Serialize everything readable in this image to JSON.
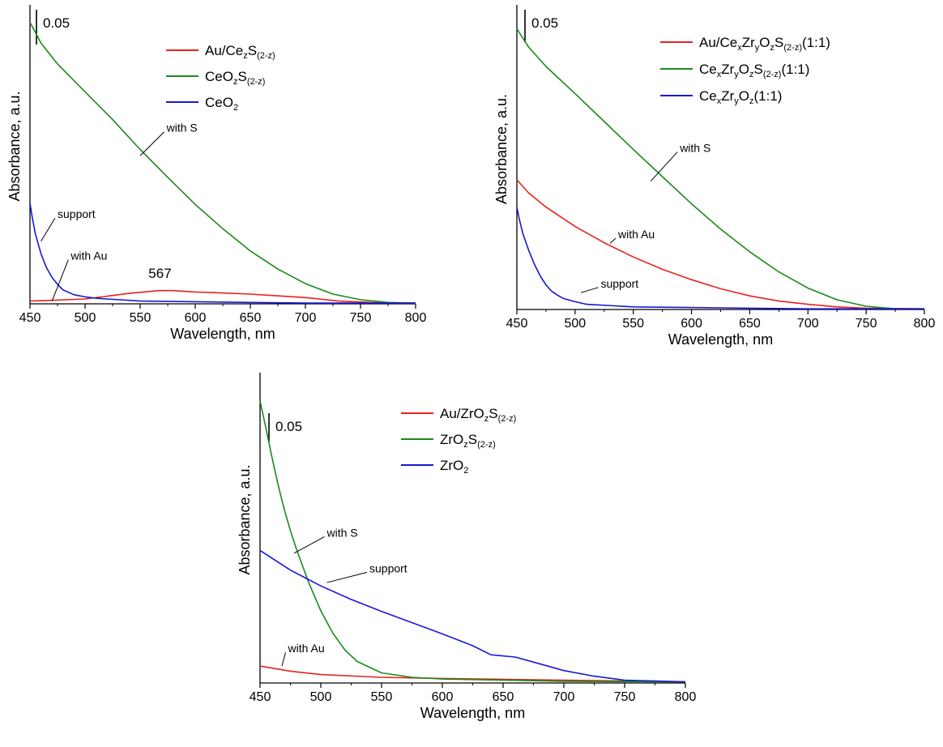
{
  "chart_data": [
    {
      "type": "line",
      "xlabel": "Wavelength, nm",
      "ylabel": "Absorbance, a.u.",
      "xlim": [
        450,
        800
      ],
      "x_ticks": [
        "450",
        "500",
        "550",
        "600",
        "650",
        "700",
        "750",
        "800"
      ],
      "ylim": [
        0,
        0.43
      ],
      "scale_bar": {
        "label": "0.05",
        "value": 0.05
      },
      "legend_position": "top-right",
      "series": [
        {
          "name": "Au/Ce_zS_(2-z)",
          "legend": [
            {
              "t": "Au/Ce"
            },
            {
              "t": "z",
              "s": "sub"
            },
            {
              "t": "S"
            },
            {
              "t": "(2-z)",
              "s": "sub"
            }
          ],
          "color": "#e8201f",
          "x": [
            450,
            470,
            500,
            520,
            540,
            560,
            567,
            580,
            600,
            620,
            650,
            680,
            700,
            730,
            760,
            800
          ],
          "y": [
            0.004,
            0.005,
            0.007,
            0.011,
            0.015,
            0.018,
            0.019,
            0.019,
            0.017,
            0.016,
            0.014,
            0.011,
            0.009,
            0.004,
            0.002,
            0.001
          ]
        },
        {
          "name": "CeO_zS_(2-z)",
          "legend": [
            {
              "t": "CeO"
            },
            {
              "t": "z",
              "s": "sub"
            },
            {
              "t": "S"
            },
            {
              "t": "(2-z)",
              "s": "sub"
            }
          ],
          "color": "#1a8a1a",
          "x": [
            450,
            460,
            475,
            500,
            525,
            550,
            575,
            600,
            625,
            650,
            675,
            700,
            725,
            750,
            775,
            800
          ],
          "y": [
            0.405,
            0.375,
            0.345,
            0.305,
            0.265,
            0.222,
            0.182,
            0.143,
            0.108,
            0.076,
            0.05,
            0.029,
            0.014,
            0.006,
            0.002,
            0.001
          ]
        },
        {
          "name": "CeO_2",
          "legend": [
            {
              "t": "CeO"
            },
            {
              "t": "2",
              "s": "sub"
            }
          ],
          "color": "#1717d8",
          "x": [
            450,
            452,
            455,
            460,
            465,
            470,
            475,
            480,
            490,
            500,
            510,
            520,
            550,
            600,
            650,
            700,
            800
          ],
          "y": [
            0.145,
            0.125,
            0.1,
            0.072,
            0.052,
            0.038,
            0.028,
            0.02,
            0.013,
            0.01,
            0.008,
            0.007,
            0.004,
            0.003,
            0.002,
            0.001,
            0.001
          ]
        }
      ],
      "annotations": [
        {
          "text": "with S",
          "x": 574,
          "y": 0.252,
          "tx": 550,
          "ty": 0.213
        },
        {
          "text": "support",
          "x": 475,
          "y": 0.128,
          "tx": 460,
          "ty": 0.09
        },
        {
          "text": "with Au",
          "x": 487,
          "y": 0.068,
          "tx": 470,
          "ty": 0.004
        },
        {
          "text": "567",
          "x": 568,
          "y": 0.037
        }
      ]
    },
    {
      "type": "line",
      "xlabel": "Wavelength, nm",
      "ylabel": "Absorbance, a.u.",
      "xlim": [
        450,
        800
      ],
      "x_ticks": [
        "450",
        "500",
        "550",
        "600",
        "650",
        "700",
        "750",
        "800"
      ],
      "ylim": [
        0,
        0.47
      ],
      "scale_bar": {
        "label": "0.05",
        "value": 0.05
      },
      "legend_position": "top-right",
      "series": [
        {
          "name": "Au/Ce_xZr_yO_zS_(2-z)(1:1)",
          "legend": [
            {
              "t": "Au/Ce"
            },
            {
              "t": "x",
              "s": "sub"
            },
            {
              "t": "Zr"
            },
            {
              "t": "y",
              "s": "sub"
            },
            {
              "t": "O"
            },
            {
              "t": "z",
              "s": "sub"
            },
            {
              "t": "S"
            },
            {
              "t": "(2-z)",
              "s": "sub"
            },
            {
              "t": "(1:1)"
            }
          ],
          "color": "#e8201f",
          "x": [
            450,
            460,
            475,
            500,
            525,
            550,
            575,
            600,
            625,
            650,
            675,
            700,
            725,
            750,
            800
          ],
          "y": [
            0.2,
            0.18,
            0.158,
            0.128,
            0.103,
            0.081,
            0.062,
            0.046,
            0.032,
            0.021,
            0.013,
            0.008,
            0.004,
            0.002,
            0.001
          ]
        },
        {
          "name": "Ce_xZr_yO_zS_(2-z)(1:1)",
          "legend": [
            {
              "t": "Ce"
            },
            {
              "t": "x",
              "s": "sub"
            },
            {
              "t": "Zr"
            },
            {
              "t": "y",
              "s": "sub"
            },
            {
              "t": "O"
            },
            {
              "t": "z",
              "s": "sub"
            },
            {
              "t": "S"
            },
            {
              "t": "(2-z)",
              "s": "sub"
            },
            {
              "t": "(1:1)"
            }
          ],
          "color": "#1a8a1a",
          "x": [
            450,
            460,
            475,
            500,
            525,
            550,
            575,
            600,
            625,
            650,
            675,
            700,
            725,
            750,
            775,
            800
          ],
          "y": [
            0.433,
            0.405,
            0.375,
            0.333,
            0.29,
            0.247,
            0.205,
            0.163,
            0.124,
            0.089,
            0.058,
            0.033,
            0.015,
            0.005,
            0.001,
            0.001
          ]
        },
        {
          "name": "Ce_xZr_yO_z(1:1)",
          "legend": [
            {
              "t": "Ce"
            },
            {
              "t": "x",
              "s": "sub"
            },
            {
              "t": "Zr"
            },
            {
              "t": "y",
              "s": "sub"
            },
            {
              "t": "O"
            },
            {
              "t": "z",
              "s": "sub"
            },
            {
              "t": "(1:1)"
            }
          ],
          "color": "#1717d8",
          "x": [
            450,
            452,
            455,
            460,
            465,
            470,
            475,
            480,
            485,
            490,
            500,
            510,
            550,
            600,
            650,
            700,
            800
          ],
          "y": [
            0.158,
            0.14,
            0.118,
            0.092,
            0.07,
            0.052,
            0.038,
            0.028,
            0.022,
            0.017,
            0.012,
            0.008,
            0.004,
            0.003,
            0.002,
            0.001,
            0.001
          ]
        }
      ],
      "annotations": [
        {
          "text": "with S",
          "x": 590,
          "y": 0.248,
          "tx": 565,
          "ty": 0.198
        },
        {
          "text": "with Au",
          "x": 537,
          "y": 0.115,
          "tx": 530,
          "ty": 0.102
        },
        {
          "text": "support",
          "x": 522,
          "y": 0.039,
          "tx": 505,
          "ty": 0.026
        }
      ]
    },
    {
      "type": "line",
      "xlabel": "Wavelength, nm",
      "ylabel": "Absorbance, a.u.",
      "xlim": [
        450,
        800
      ],
      "x_ticks": [
        "450",
        "500",
        "550",
        "600",
        "650",
        "700",
        "750",
        "800"
      ],
      "ylim": [
        0,
        0.55
      ],
      "scale_bar": {
        "label": "0.05",
        "value": 0.05
      },
      "legend_position": "top-right",
      "series": [
        {
          "name": "Au/ZrO_zS_(2-z)",
          "legend": [
            {
              "t": "Au/ZrO"
            },
            {
              "t": "z",
              "s": "sub"
            },
            {
              "t": "S"
            },
            {
              "t": "(2-z)",
              "s": "sub"
            }
          ],
          "color": "#e8201f",
          "x": [
            450,
            475,
            500,
            550,
            600,
            700,
            800
          ],
          "y": [
            0.03,
            0.021,
            0.015,
            0.01,
            0.008,
            0.005,
            0.002
          ]
        },
        {
          "name": "ZrO_zS_(2-z)",
          "legend": [
            {
              "t": "ZrO"
            },
            {
              "t": "z",
              "s": "sub"
            },
            {
              "t": "S"
            },
            {
              "t": "(2-z)",
              "s": "sub"
            }
          ],
          "color": "#1a8a1a",
          "x": [
            450,
            455,
            460,
            465,
            470,
            475,
            480,
            490,
            500,
            510,
            520,
            530,
            550,
            575,
            600,
            650,
            700,
            800
          ],
          "y": [
            0.5,
            0.45,
            0.398,
            0.35,
            0.307,
            0.27,
            0.237,
            0.178,
            0.128,
            0.088,
            0.058,
            0.038,
            0.018,
            0.01,
            0.007,
            0.005,
            0.003,
            0.002
          ]
        },
        {
          "name": "ZrO_2",
          "legend": [
            {
              "t": "ZrO"
            },
            {
              "t": "2",
              "s": "sub"
            }
          ],
          "color": "#1717d8",
          "x": [
            450,
            475,
            500,
            525,
            550,
            575,
            600,
            625,
            640,
            660,
            675,
            700,
            725,
            750,
            800
          ],
          "y": [
            0.235,
            0.2,
            0.172,
            0.148,
            0.127,
            0.107,
            0.087,
            0.066,
            0.05,
            0.046,
            0.037,
            0.022,
            0.012,
            0.005,
            0.002
          ]
        }
      ],
      "annotations": [
        {
          "text": "with S",
          "x": 505,
          "y": 0.265,
          "tx": 478,
          "ty": 0.23
        },
        {
          "text": "support",
          "x": 540,
          "y": 0.202,
          "tx": 505,
          "ty": 0.178
        },
        {
          "text": "with Au",
          "x": 473,
          "y": 0.06,
          "tx": 468,
          "ty": 0.03
        }
      ]
    }
  ]
}
